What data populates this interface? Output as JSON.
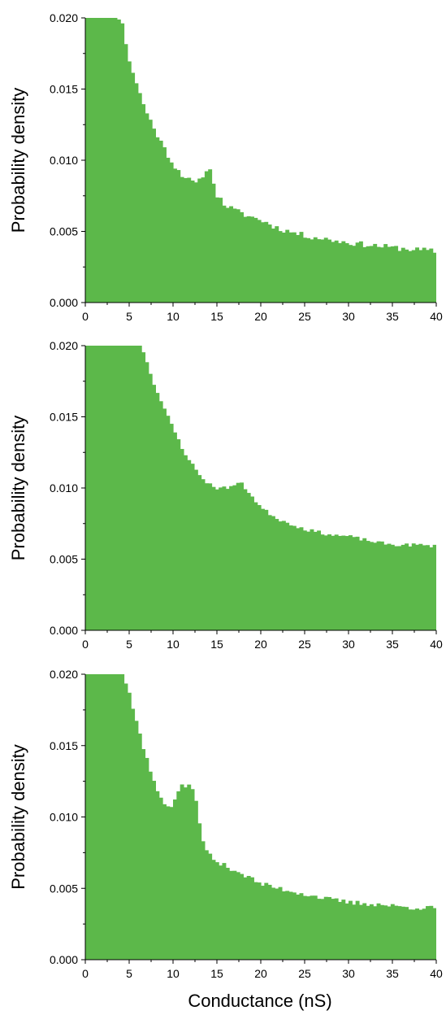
{
  "figure": {
    "xlabel": "Conductance (nS)"
  },
  "chart_data": [
    {
      "type": "bar",
      "panel": "top",
      "xlabel": "Conductance (nS)",
      "ylabel": "Probability density",
      "xlim": [
        0,
        40
      ],
      "ylim": [
        0,
        0.02
      ],
      "xticks": [
        "0",
        "5",
        "10",
        "15",
        "20",
        "25",
        "30",
        "35",
        "40"
      ],
      "yticks": [
        "0.000",
        "0.005",
        "0.010",
        "0.015",
        "0.020"
      ],
      "bin_width": 0.4,
      "color": "#5cb84a",
      "anchors": [
        [
          0,
          0.025
        ],
        [
          3.4,
          0.0205
        ],
        [
          4.2,
          0.0195
        ],
        [
          5.0,
          0.017
        ],
        [
          6,
          0.015
        ],
        [
          7,
          0.0133
        ],
        [
          8,
          0.012
        ],
        [
          9,
          0.0108
        ],
        [
          10,
          0.0097
        ],
        [
          11,
          0.009
        ],
        [
          12,
          0.0085
        ],
        [
          12.8,
          0.0083
        ],
        [
          13.6,
          0.0092
        ],
        [
          14.1,
          0.0094
        ],
        [
          14.5,
          0.0088
        ],
        [
          15,
          0.0075
        ],
        [
          16,
          0.0068
        ],
        [
          17,
          0.0065
        ],
        [
          18,
          0.0062
        ],
        [
          20,
          0.0058
        ],
        [
          22,
          0.0052
        ],
        [
          25,
          0.0047
        ],
        [
          28,
          0.0044
        ],
        [
          30,
          0.0042
        ],
        [
          33,
          0.004
        ],
        [
          36,
          0.0038
        ],
        [
          40,
          0.0036
        ]
      ],
      "noise": 0.0002,
      "seed": 11
    },
    {
      "type": "bar",
      "panel": "middle",
      "xlabel": "Conductance (nS)",
      "ylabel": "Probability density",
      "xlim": [
        0,
        40
      ],
      "ylim": [
        0,
        0.02
      ],
      "xticks": [
        "0",
        "5",
        "10",
        "15",
        "20",
        "25",
        "30",
        "35",
        "40"
      ],
      "yticks": [
        "0.000",
        "0.005",
        "0.010",
        "0.015",
        "0.020"
      ],
      "bin_width": 0.4,
      "color": "#5cb84a",
      "anchors": [
        [
          0,
          0.025
        ],
        [
          5.8,
          0.0205
        ],
        [
          6.5,
          0.0198
        ],
        [
          7,
          0.0188
        ],
        [
          8,
          0.017
        ],
        [
          9,
          0.0155
        ],
        [
          10,
          0.0142
        ],
        [
          11,
          0.0128
        ],
        [
          12,
          0.0118
        ],
        [
          13,
          0.0109
        ],
        [
          14,
          0.0103
        ],
        [
          15,
          0.01
        ],
        [
          16,
          0.01
        ],
        [
          17,
          0.0102
        ],
        [
          17.6,
          0.0104
        ],
        [
          18.5,
          0.0098
        ],
        [
          20,
          0.0086
        ],
        [
          22,
          0.0078
        ],
        [
          25,
          0.0071
        ],
        [
          28,
          0.0067
        ],
        [
          30,
          0.0066
        ],
        [
          33,
          0.0062
        ],
        [
          35,
          0.006
        ],
        [
          38,
          0.006
        ],
        [
          40,
          0.0059
        ]
      ],
      "noise": 0.00012,
      "seed": 23
    },
    {
      "type": "bar",
      "panel": "bottom",
      "xlabel": "Conductance (nS)",
      "ylabel": "Probability density",
      "xlim": [
        0,
        40
      ],
      "ylim": [
        0,
        0.02
      ],
      "xticks": [
        "0",
        "5",
        "10",
        "15",
        "20",
        "25",
        "30",
        "35",
        "40"
      ],
      "yticks": [
        "0.000",
        "0.005",
        "0.010",
        "0.015",
        "0.020"
      ],
      "bin_width": 0.4,
      "color": "#5cb84a",
      "anchors": [
        [
          0,
          0.024
        ],
        [
          4.0,
          0.0205
        ],
        [
          4.6,
          0.0195
        ],
        [
          5.5,
          0.0175
        ],
        [
          6.5,
          0.015
        ],
        [
          7.5,
          0.013
        ],
        [
          8.5,
          0.0115
        ],
        [
          9.5,
          0.0105
        ],
        [
          10.1,
          0.011
        ],
        [
          10.7,
          0.0121
        ],
        [
          11.5,
          0.0121
        ],
        [
          12.2,
          0.0121
        ],
        [
          12.8,
          0.0105
        ],
        [
          13.5,
          0.0078
        ],
        [
          15,
          0.0068
        ],
        [
          17,
          0.0063
        ],
        [
          20,
          0.0053
        ],
        [
          22,
          0.005
        ],
        [
          25,
          0.0046
        ],
        [
          28,
          0.0042
        ],
        [
          30,
          0.004
        ],
        [
          33,
          0.0039
        ],
        [
          36,
          0.0037
        ],
        [
          40,
          0.0036
        ]
      ],
      "noise": 0.00018,
      "seed": 37
    }
  ]
}
